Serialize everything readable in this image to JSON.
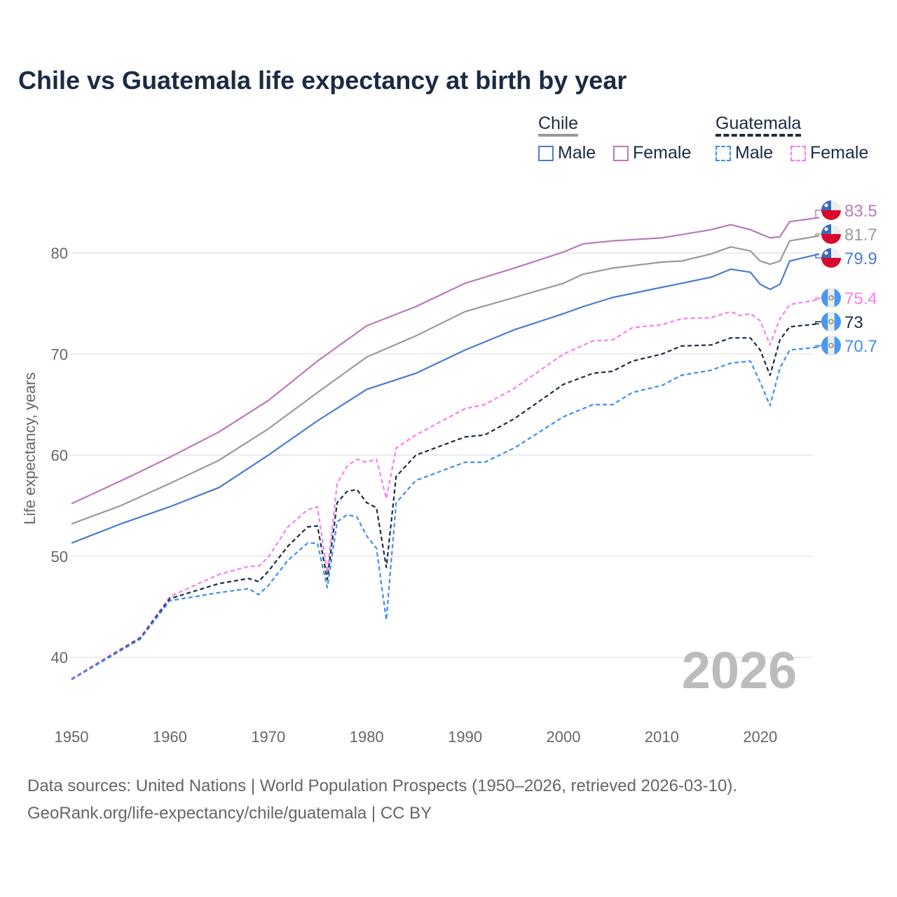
{
  "title": "Chile vs Guatemala life expectancy at birth by year",
  "legend": {
    "groups": [
      {
        "name": "Chile",
        "items": [
          "Male",
          "Female"
        ]
      },
      {
        "name": "Guatemala",
        "items": [
          "Male",
          "Female"
        ]
      }
    ]
  },
  "year_watermark": "2026",
  "footer": {
    "line1": "Data sources: United Nations | World Population Prospects (1950–2026, retrieved 2026-03-10).",
    "line2": "GeoRank.org/life-expectancy/chile/guatemala | CC BY"
  },
  "chart_data": {
    "type": "line",
    "title": "Chile vs Guatemala life expectancy at birth by year",
    "xlabel": "",
    "ylabel": "Life expectancy, years",
    "xlim": [
      1950,
      2026
    ],
    "ylim": [
      35,
      86
    ],
    "xticks": [
      "1950",
      "1960",
      "1970",
      "1980",
      "1990",
      "2000",
      "2010",
      "2020"
    ],
    "yticks": [
      "40",
      "50",
      "60",
      "70",
      "80"
    ],
    "grid": true,
    "legend_position": "top-right",
    "series": [
      {
        "name": "Chile Female",
        "country": "Chile",
        "color": "#b87bb8",
        "dashed": false,
        "end_label": "83.5",
        "flag": "chile",
        "points": [
          [
            1950,
            55.2
          ],
          [
            1956,
            57.9
          ],
          [
            1960,
            59.8
          ],
          [
            1965,
            62.3
          ],
          [
            1970,
            65.4
          ],
          [
            1975,
            69.3
          ],
          [
            1980,
            72.8
          ],
          [
            1985,
            74.7
          ],
          [
            1990,
            77.0
          ],
          [
            1995,
            78.5
          ],
          [
            2000,
            80.1
          ],
          [
            2002,
            80.9
          ],
          [
            2005,
            81.2
          ],
          [
            2010,
            81.5
          ],
          [
            2015,
            82.3
          ],
          [
            2017,
            82.8
          ],
          [
            2019,
            82.3
          ],
          [
            2021,
            81.5
          ],
          [
            2022,
            81.6
          ],
          [
            2023,
            83.1
          ],
          [
            2026,
            83.5
          ]
        ]
      },
      {
        "name": "Chile Total",
        "country": "Chile",
        "color": "#999999",
        "dashed": false,
        "end_label": "81.7",
        "flag": "chile",
        "points": [
          [
            1950,
            53.2
          ],
          [
            1955,
            55.0
          ],
          [
            1960,
            57.2
          ],
          [
            1965,
            59.5
          ],
          [
            1970,
            62.6
          ],
          [
            1975,
            66.2
          ],
          [
            1980,
            69.7
          ],
          [
            1985,
            71.8
          ],
          [
            1990,
            74.2
          ],
          [
            1995,
            75.6
          ],
          [
            2000,
            77.0
          ],
          [
            2002,
            77.9
          ],
          [
            2005,
            78.5
          ],
          [
            2010,
            79.1
          ],
          [
            2012,
            79.2
          ],
          [
            2015,
            79.9
          ],
          [
            2017,
            80.6
          ],
          [
            2019,
            80.2
          ],
          [
            2020,
            79.2
          ],
          [
            2021,
            78.9
          ],
          [
            2022,
            79.2
          ],
          [
            2023,
            81.2
          ],
          [
            2026,
            81.7
          ]
        ]
      },
      {
        "name": "Chile Male",
        "country": "Chile",
        "color": "#4a7bd0",
        "dashed": false,
        "end_label": "79.9",
        "flag": "chile",
        "points": [
          [
            1950,
            51.3
          ],
          [
            1955,
            53.2
          ],
          [
            1960,
            54.9
          ],
          [
            1965,
            56.8
          ],
          [
            1970,
            60.0
          ],
          [
            1975,
            63.4
          ],
          [
            1980,
            66.5
          ],
          [
            1985,
            68.1
          ],
          [
            1990,
            70.4
          ],
          [
            1995,
            72.4
          ],
          [
            2000,
            74.0
          ],
          [
            2002,
            74.7
          ],
          [
            2005,
            75.6
          ],
          [
            2010,
            76.6
          ],
          [
            2012,
            77.0
          ],
          [
            2015,
            77.6
          ],
          [
            2017,
            78.4
          ],
          [
            2019,
            78.1
          ],
          [
            2020,
            76.9
          ],
          [
            2021,
            76.4
          ],
          [
            2022,
            76.9
          ],
          [
            2023,
            79.2
          ],
          [
            2026,
            79.9
          ]
        ]
      },
      {
        "name": "Guatemala Female",
        "country": "Guatemala",
        "color": "#f77ff0",
        "dashed": true,
        "end_label": "75.4",
        "flag": "guatemala",
        "points": [
          [
            1950,
            37.9
          ],
          [
            1957,
            42.0
          ],
          [
            1960,
            46.0
          ],
          [
            1962,
            46.9
          ],
          [
            1965,
            48.2
          ],
          [
            1968,
            49.0
          ],
          [
            1969,
            49.0
          ],
          [
            1970,
            49.9
          ],
          [
            1972,
            52.9
          ],
          [
            1974,
            54.6
          ],
          [
            1975,
            54.9
          ],
          [
            1976,
            48.4
          ],
          [
            1977,
            57.2
          ],
          [
            1978,
            58.9
          ],
          [
            1979,
            59.6
          ],
          [
            1980,
            59.3
          ],
          [
            1981,
            59.6
          ],
          [
            1982,
            55.7
          ],
          [
            1983,
            60.7
          ],
          [
            1985,
            62.0
          ],
          [
            1990,
            64.6
          ],
          [
            1992,
            65.0
          ],
          [
            1995,
            66.6
          ],
          [
            2000,
            70.0
          ],
          [
            2003,
            71.3
          ],
          [
            2005,
            71.4
          ],
          [
            2007,
            72.6
          ],
          [
            2010,
            72.9
          ],
          [
            2012,
            73.5
          ],
          [
            2015,
            73.6
          ],
          [
            2017,
            74.2
          ],
          [
            2018,
            73.8
          ],
          [
            2019,
            74.0
          ],
          [
            2020,
            73.3
          ],
          [
            2021,
            70.9
          ],
          [
            2022,
            73.5
          ],
          [
            2023,
            74.9
          ],
          [
            2026,
            75.4
          ]
        ]
      },
      {
        "name": "Guatemala Total",
        "country": "Guatemala",
        "color": "#1c2b44",
        "dashed": true,
        "end_label": "73",
        "flag": "guatemala",
        "points": [
          [
            1950,
            37.8
          ],
          [
            1957,
            41.9
          ],
          [
            1960,
            45.8
          ],
          [
            1965,
            47.3
          ],
          [
            1968,
            47.8
          ],
          [
            1969,
            47.5
          ],
          [
            1970,
            48.5
          ],
          [
            1972,
            51.0
          ],
          [
            1974,
            52.9
          ],
          [
            1975,
            53.0
          ],
          [
            1976,
            47.7
          ],
          [
            1977,
            55.3
          ],
          [
            1978,
            56.4
          ],
          [
            1979,
            56.6
          ],
          [
            1980,
            55.3
          ],
          [
            1981,
            54.8
          ],
          [
            1982,
            48.9
          ],
          [
            1983,
            57.9
          ],
          [
            1985,
            60.0
          ],
          [
            1990,
            61.8
          ],
          [
            1992,
            62.0
          ],
          [
            1995,
            63.6
          ],
          [
            2000,
            67.0
          ],
          [
            2003,
            68.1
          ],
          [
            2005,
            68.3
          ],
          [
            2007,
            69.3
          ],
          [
            2010,
            70.0
          ],
          [
            2012,
            70.8
          ],
          [
            2015,
            70.9
          ],
          [
            2017,
            71.6
          ],
          [
            2019,
            71.6
          ],
          [
            2020,
            70.4
          ],
          [
            2021,
            67.9
          ],
          [
            2022,
            71.4
          ],
          [
            2023,
            72.7
          ],
          [
            2026,
            73.0
          ]
        ]
      },
      {
        "name": "Guatemala Male",
        "country": "Guatemala",
        "color": "#3f8ef0",
        "dashed": true,
        "end_label": "70.7",
        "flag": "guatemala",
        "points": [
          [
            1950,
            37.8
          ],
          [
            1957,
            41.8
          ],
          [
            1960,
            45.6
          ],
          [
            1965,
            46.4
          ],
          [
            1968,
            46.8
          ],
          [
            1969,
            46.2
          ],
          [
            1970,
            47.1
          ],
          [
            1972,
            49.6
          ],
          [
            1974,
            51.3
          ],
          [
            1975,
            51.3
          ],
          [
            1976,
            46.9
          ],
          [
            1977,
            53.4
          ],
          [
            1978,
            54.1
          ],
          [
            1979,
            53.9
          ],
          [
            1980,
            52.0
          ],
          [
            1981,
            50.8
          ],
          [
            1982,
            43.7
          ],
          [
            1983,
            55.3
          ],
          [
            1985,
            57.5
          ],
          [
            1990,
            59.3
          ],
          [
            1992,
            59.3
          ],
          [
            1995,
            60.7
          ],
          [
            2000,
            63.8
          ],
          [
            2003,
            65.0
          ],
          [
            2005,
            65.0
          ],
          [
            2007,
            66.2
          ],
          [
            2010,
            66.9
          ],
          [
            2012,
            67.9
          ],
          [
            2015,
            68.4
          ],
          [
            2017,
            69.1
          ],
          [
            2019,
            69.3
          ],
          [
            2020,
            67.2
          ],
          [
            2021,
            64.9
          ],
          [
            2022,
            68.6
          ],
          [
            2023,
            70.4
          ],
          [
            2026,
            70.7
          ]
        ]
      }
    ]
  }
}
